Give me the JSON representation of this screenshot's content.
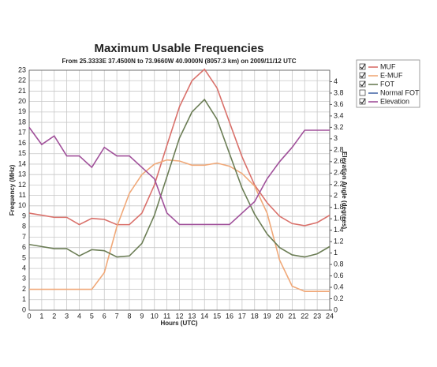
{
  "chart_data": {
    "type": "line",
    "title": "Maximum Usable Frequencies",
    "subtitle": "From  25.3333E 37.4500N to  73.9660W 40.9000N (8057.3 km) on 2009/11/12 UTC",
    "x_label": "Hours (UTC)",
    "y_label": "Frequency (MHz)",
    "y2_label": "Elevation Angle (degrees)",
    "x": [
      0,
      1,
      2,
      3,
      4,
      5,
      6,
      7,
      8,
      9,
      10,
      11,
      12,
      13,
      14,
      15,
      16,
      17,
      18,
      19,
      20,
      21,
      22,
      23,
      24
    ],
    "xlim": [
      0,
      24
    ],
    "xticks": [
      0,
      1,
      2,
      3,
      4,
      5,
      6,
      7,
      8,
      9,
      10,
      11,
      12,
      13,
      14,
      15,
      16,
      17,
      18,
      19,
      20,
      21,
      22,
      23,
      24
    ],
    "ylim": [
      0,
      23
    ],
    "yticks": [
      0,
      1,
      2,
      3,
      4,
      5,
      6,
      7,
      8,
      9,
      10,
      11,
      12,
      13,
      14,
      15,
      16,
      17,
      18,
      19,
      20,
      21,
      22,
      23
    ],
    "y2lim": [
      0,
      4.2
    ],
    "y2ticks": [
      0,
      0.2,
      0.4,
      0.6,
      0.8,
      1,
      1.2,
      1.4,
      1.6,
      1.8,
      2,
      2.2,
      2.4,
      2.6,
      2.8,
      3,
      3.2,
      3.4,
      3.6,
      3.8,
      4
    ],
    "grid": true,
    "series": [
      {
        "name": "MUF",
        "color": "#d9706a",
        "checked": true,
        "values": [
          9.3,
          9.1,
          8.9,
          8.9,
          8.2,
          8.8,
          8.7,
          8.2,
          8.2,
          9.3,
          12,
          15.8,
          19.5,
          22,
          23.1,
          21.3,
          18,
          14.7,
          12,
          10.3,
          9,
          8.3,
          8.1,
          8.4,
          9.1
        ]
      },
      {
        "name": "E-MUF",
        "color": "#f0a878",
        "checked": true,
        "values": [
          2,
          2,
          2,
          2,
          2,
          2,
          3.6,
          8,
          11.2,
          13,
          14,
          14.4,
          14.3,
          13.9,
          13.9,
          14.1,
          13.8,
          13.1,
          11.9,
          9.3,
          4.8,
          2.3,
          1.8,
          1.8,
          1.8
        ]
      },
      {
        "name": "FOT",
        "color": "#6b7d55",
        "checked": true,
        "values": [
          6.3,
          6.1,
          5.9,
          5.9,
          5.2,
          5.8,
          5.7,
          5.1,
          5.2,
          6.4,
          9.1,
          12.8,
          16.5,
          19,
          20.2,
          18.3,
          15,
          11.7,
          9.2,
          7.3,
          6,
          5.3,
          5.1,
          5.4,
          6.1
        ]
      },
      {
        "name": "Normal FOT",
        "color": "#4a6aa8",
        "checked": false,
        "values": [
          null,
          null,
          null,
          null,
          null,
          null,
          null,
          null,
          null,
          null,
          null,
          null,
          null,
          null,
          null,
          null,
          null,
          null,
          null,
          null,
          null,
          null,
          null,
          null,
          null
        ]
      },
      {
        "name": "Elevation",
        "color": "#a0509a",
        "checked": true,
        "axis": "y2",
        "values": [
          3.2,
          2.9,
          3.05,
          2.7,
          2.7,
          2.5,
          2.85,
          2.7,
          2.7,
          2.5,
          2.3,
          1.7,
          1.5,
          1.5,
          1.5,
          1.5,
          1.5,
          1.7,
          1.9,
          2.3,
          2.6,
          2.85,
          3.15,
          3.15,
          3.15
        ]
      }
    ]
  }
}
